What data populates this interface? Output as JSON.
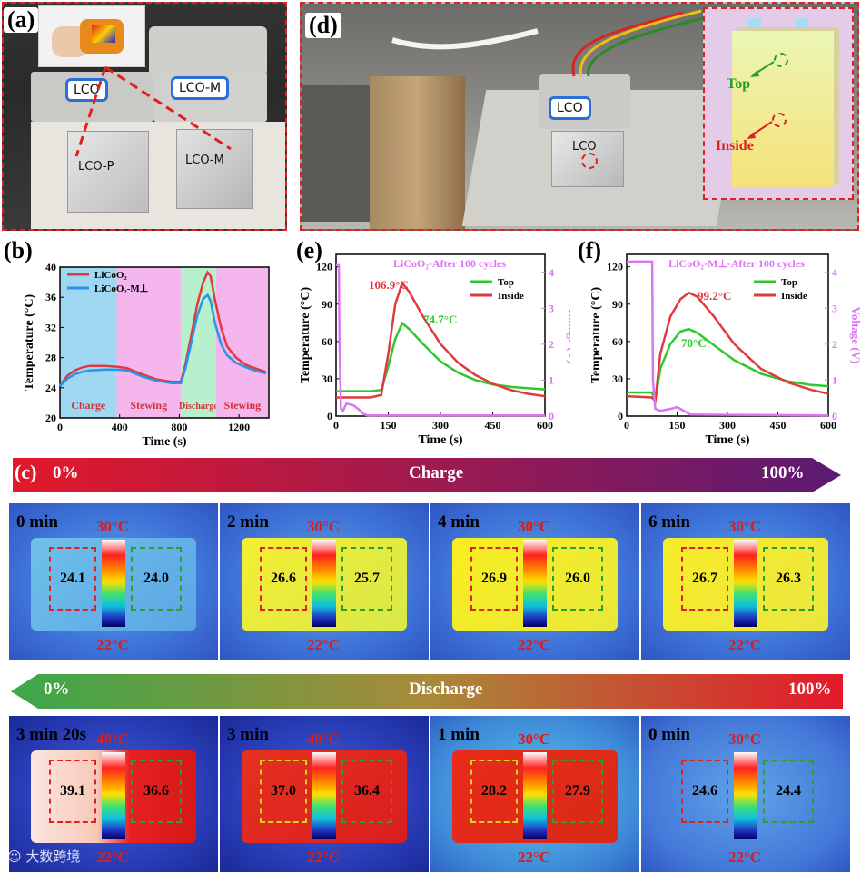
{
  "panels": {
    "a": {
      "label": "(a)",
      "tags": [
        "LCO",
        "LCO-M"
      ],
      "cell_labels": [
        "LCO-P",
        "LCO-M"
      ]
    },
    "d": {
      "label": "(d)",
      "tags": [
        "LCO",
        "LCO"
      ],
      "inset": {
        "top": "Top",
        "inside": "Inside"
      }
    },
    "b": {
      "label": "(b)"
    },
    "e": {
      "label": "(e)"
    },
    "f": {
      "label": "(f)"
    },
    "c": {
      "label": "(c)"
    }
  },
  "charge_bar": {
    "start": "0%",
    "title": "Charge",
    "end": "100%"
  },
  "discharge_bar": {
    "start": "0%",
    "title": "Discharge",
    "end": "100%"
  },
  "charge_frames": [
    {
      "time": "0 min",
      "tmax": "30°C",
      "tmin": "22°C",
      "left": "24.1",
      "right": "24.0"
    },
    {
      "time": "2 min",
      "tmax": "30°C",
      "tmin": "22°C",
      "left": "26.6",
      "right": "25.7"
    },
    {
      "time": "4 min",
      "tmax": "30°C",
      "tmin": "22°C",
      "left": "26.9",
      "right": "26.0"
    },
    {
      "time": "6 min",
      "tmax": "30°C",
      "tmin": "22°C",
      "left": "26.7",
      "right": "26.3"
    }
  ],
  "discharge_frames": [
    {
      "time": "3 min 20s",
      "tmax": "40°C",
      "tmin": "22°C",
      "left": "39.1",
      "right": "36.6"
    },
    {
      "time": "3 min",
      "tmax": "40°C",
      "tmin": "22°C",
      "left": "37.0",
      "right": "36.4"
    },
    {
      "time": "1 min",
      "tmax": "30°C",
      "tmin": "22°C",
      "left": "28.2",
      "right": "27.9"
    },
    {
      "time": "0 min",
      "tmax": "30°C",
      "tmin": "22°C",
      "left": "24.6",
      "right": "24.4"
    }
  ],
  "watermark": "大数跨境",
  "chart_data": [
    {
      "id": "b",
      "type": "line",
      "xlabel": "Time (s)",
      "ylabel": "Temperature (°C)",
      "xlim": [
        0,
        1400
      ],
      "ylim": [
        20,
        40
      ],
      "xticks": [
        0,
        400,
        800,
        1200
      ],
      "yticks": [
        20,
        24,
        28,
        32,
        36,
        40
      ],
      "regions": [
        {
          "name": "Charge",
          "x0": 0,
          "x1": 380,
          "color": "#9fd8f2"
        },
        {
          "name": "Stewing",
          "x0": 380,
          "x1": 810,
          "color": "#f5b6ee"
        },
        {
          "name": "Discharge",
          "x0": 810,
          "x1": 1045,
          "color": "#b6f0cc"
        },
        {
          "name": "Stewing",
          "x0": 1045,
          "x1": 1400,
          "color": "#f5b6ee"
        }
      ],
      "series": [
        {
          "name": "LiCoO₂",
          "color": "#e0393e",
          "x": [
            0,
            50,
            100,
            150,
            200,
            300,
            380,
            450,
            550,
            650,
            750,
            810,
            840,
            880,
            920,
            960,
            990,
            1010,
            1040,
            1080,
            1120,
            1180,
            1250,
            1320,
            1380
          ],
          "y": [
            24.3,
            25.6,
            26.3,
            26.7,
            26.9,
            26.9,
            26.8,
            26.6,
            25.8,
            25.1,
            24.8,
            24.8,
            27,
            31,
            35,
            38,
            39.3,
            38.8,
            35.5,
            32,
            29.5,
            28,
            27,
            26.5,
            26.1
          ]
        },
        {
          "name": "LiCoO₂-M⊥",
          "color": "#2b93e8",
          "x": [
            0,
            50,
            100,
            150,
            200,
            300,
            380,
            450,
            550,
            650,
            750,
            810,
            840,
            880,
            920,
            960,
            990,
            1010,
            1040,
            1080,
            1120,
            1180,
            1250,
            1320,
            1380
          ],
          "y": [
            24.2,
            25.2,
            25.8,
            26.1,
            26.3,
            26.4,
            26.4,
            26.3,
            25.5,
            24.9,
            24.6,
            24.6,
            26.5,
            30,
            33.5,
            35.8,
            36.3,
            35.5,
            32.5,
            29.8,
            28.3,
            27.3,
            26.7,
            26.2,
            25.9
          ]
        }
      ]
    },
    {
      "id": "e",
      "type": "line",
      "title": "LiCoO₂-After 100 cycles",
      "xlabel": "Time (s)",
      "ylabel": "Temperature (°C)",
      "y2label": "Voltage (V)",
      "xlim": [
        0,
        600
      ],
      "ylim": [
        0,
        130
      ],
      "y2lim": [
        0,
        4.5
      ],
      "xticks": [
        0,
        150,
        300,
        450,
        600
      ],
      "yticks": [
        0,
        30,
        60,
        90,
        120
      ],
      "y2ticks": [
        0,
        1,
        2,
        3,
        4
      ],
      "annotations": [
        {
          "text": "106.9°C",
          "color": "#e0393e"
        },
        {
          "text": "74.7°C",
          "color": "#2ec82e"
        }
      ],
      "series": [
        {
          "name": "Top",
          "color": "#2ec82e",
          "axis": "y",
          "x": [
            0,
            100,
            130,
            150,
            170,
            190,
            210,
            250,
            300,
            350,
            400,
            450,
            500,
            550,
            600
          ],
          "y": [
            20,
            20,
            21,
            40,
            62,
            74.7,
            70,
            58,
            44,
            35,
            29,
            25.5,
            23.5,
            22.5,
            21.5
          ]
        },
        {
          "name": "Inside",
          "color": "#e0393e",
          "axis": "y",
          "x": [
            0,
            100,
            130,
            150,
            170,
            190,
            210,
            250,
            300,
            350,
            400,
            450,
            500,
            550,
            600
          ],
          "y": [
            15,
            15,
            17,
            50,
            90,
            106.9,
            100,
            80,
            58,
            43,
            33,
            26,
            21,
            18,
            16
          ]
        },
        {
          "name": "Voltage",
          "color": "#d877f0",
          "axis": "y2",
          "x": [
            0,
            8,
            10,
            14,
            20,
            30,
            50,
            70,
            80,
            90,
            600
          ],
          "y": [
            4.2,
            4.2,
            2.0,
            0.2,
            0.15,
            0.35,
            0.3,
            0.15,
            0.05,
            0.02,
            0.02
          ]
        }
      ]
    },
    {
      "id": "f",
      "type": "line",
      "title": "LiCoO₂-M⊥-After 100 cycles",
      "xlabel": "Time (s)",
      "ylabel": "Temperature (°C)",
      "y2label": "Voltage (V)",
      "xlim": [
        0,
        600
      ],
      "ylim": [
        0,
        130
      ],
      "y2lim": [
        0,
        4.5
      ],
      "xticks": [
        0,
        150,
        300,
        450,
        600
      ],
      "yticks": [
        0,
        30,
        60,
        90,
        120
      ],
      "y2ticks": [
        0,
        1,
        2,
        3,
        4
      ],
      "annotations": [
        {
          "text": "99.2°C",
          "color": "#e0393e"
        },
        {
          "text": "70°C",
          "color": "#2ec82e"
        }
      ],
      "series": [
        {
          "name": "Top",
          "color": "#2ec82e",
          "axis": "y",
          "x": [
            0,
            75,
            85,
            100,
            130,
            160,
            185,
            210,
            260,
            320,
            400,
            480,
            550,
            600
          ],
          "y": [
            19,
            19,
            12,
            38,
            58,
            68,
            70,
            67,
            57,
            45,
            34,
            28,
            25,
            24
          ]
        },
        {
          "name": "Inside",
          "color": "#e0393e",
          "axis": "y",
          "x": [
            0,
            75,
            85,
            100,
            130,
            160,
            185,
            210,
            260,
            320,
            400,
            480,
            550,
            600
          ],
          "y": [
            16,
            15,
            12,
            50,
            80,
            94,
            99.2,
            96,
            80,
            58,
            38,
            27,
            21,
            18
          ]
        },
        {
          "name": "Voltage",
          "color": "#d877f0",
          "axis": "y2",
          "x": [
            0,
            76,
            78,
            85,
            100,
            130,
            150,
            170,
            190,
            600
          ],
          "y": [
            4.3,
            4.3,
            1.0,
            0.2,
            0.15,
            0.2,
            0.25,
            0.15,
            0.04,
            0.02
          ]
        }
      ]
    }
  ]
}
